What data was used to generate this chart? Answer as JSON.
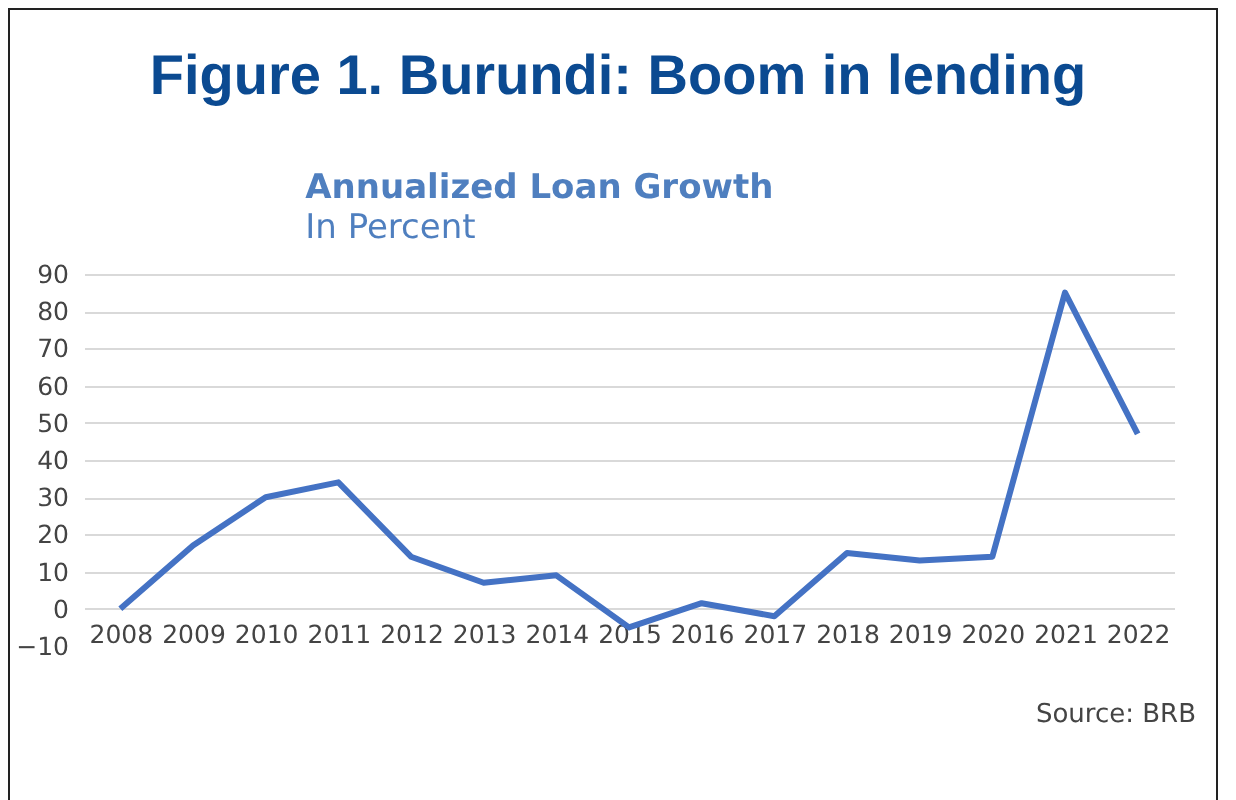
{
  "chart_data": {
    "type": "line",
    "title": "Figure 1. Burundi: Boom in lending",
    "subtitle": "Annualized Loan Growth",
    "ylabel": "In Percent",
    "categories": [
      "2008",
      "2009",
      "2010",
      "2011",
      "2012",
      "2013",
      "2014",
      "2015",
      "2016",
      "2017",
      "2018",
      "2019",
      "2020",
      "2021",
      "2022"
    ],
    "series": [
      {
        "color": "#4472c4",
        "values": [
          0,
          17,
          30,
          34,
          14,
          7,
          9,
          -5,
          1.5,
          -2,
          15,
          13,
          14,
          85,
          47
        ]
      }
    ],
    "ylim": [
      -10,
      90
    ],
    "yticks": [
      -10,
      0,
      10,
      20,
      30,
      40,
      50,
      60,
      70,
      80,
      90
    ],
    "grid": "y",
    "legend": false,
    "marker": "none",
    "line_style": "solid",
    "annotations": [
      "Source: BRB"
    ]
  }
}
